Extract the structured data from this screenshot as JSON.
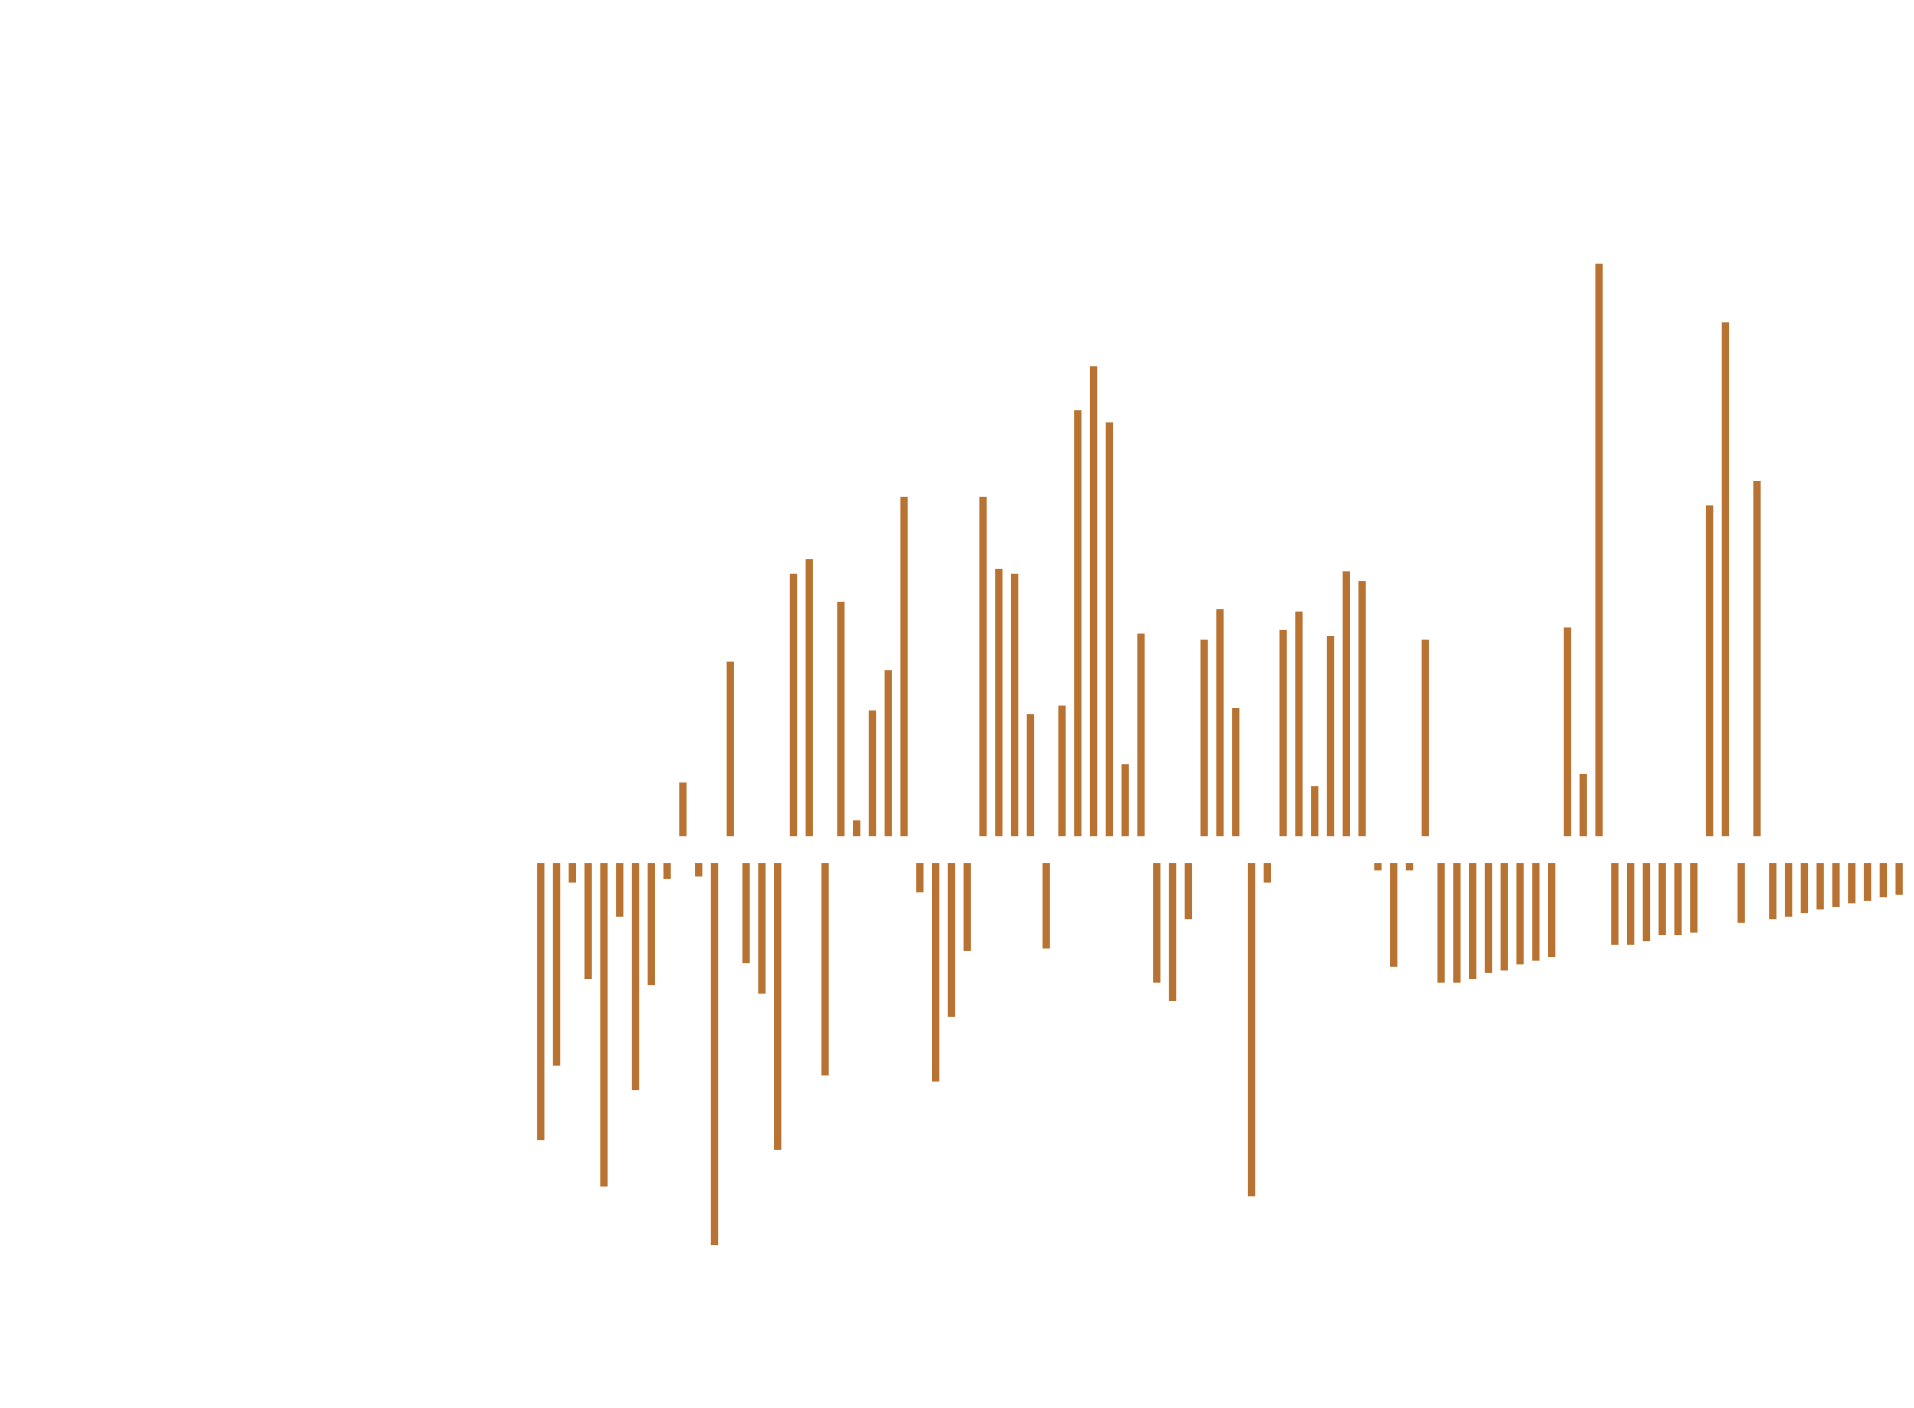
{
  "chart_data": {
    "type": "bar",
    "color": "#b87333",
    "values": [
      -227,
      -166,
      -16,
      -95,
      -265,
      -44,
      -186,
      -100,
      -13,
      44,
      -11,
      -313,
      143,
      -82,
      -107,
      -235,
      215,
      227,
      -174,
      192,
      13,
      103,
      136,
      278,
      -24,
      -179,
      -126,
      -72,
      278,
      219,
      215,
      100,
      -70,
      107,
      349,
      385,
      339,
      59,
      166,
      -98,
      -113,
      -46,
      161,
      186,
      105,
      -273,
      -16,
      169,
      184,
      41,
      164,
      217,
      209,
      -6,
      -85,
      -6,
      161,
      -98,
      -98,
      -95,
      -90,
      -88,
      -83,
      -80,
      -77,
      171,
      51,
      469,
      -67,
      -67,
      -64,
      -59,
      -59,
      -57,
      271,
      421,
      -49,
      291,
      -46,
      -44,
      -41,
      -38,
      -36,
      -33,
      -31,
      -28,
      -26
    ]
  }
}
